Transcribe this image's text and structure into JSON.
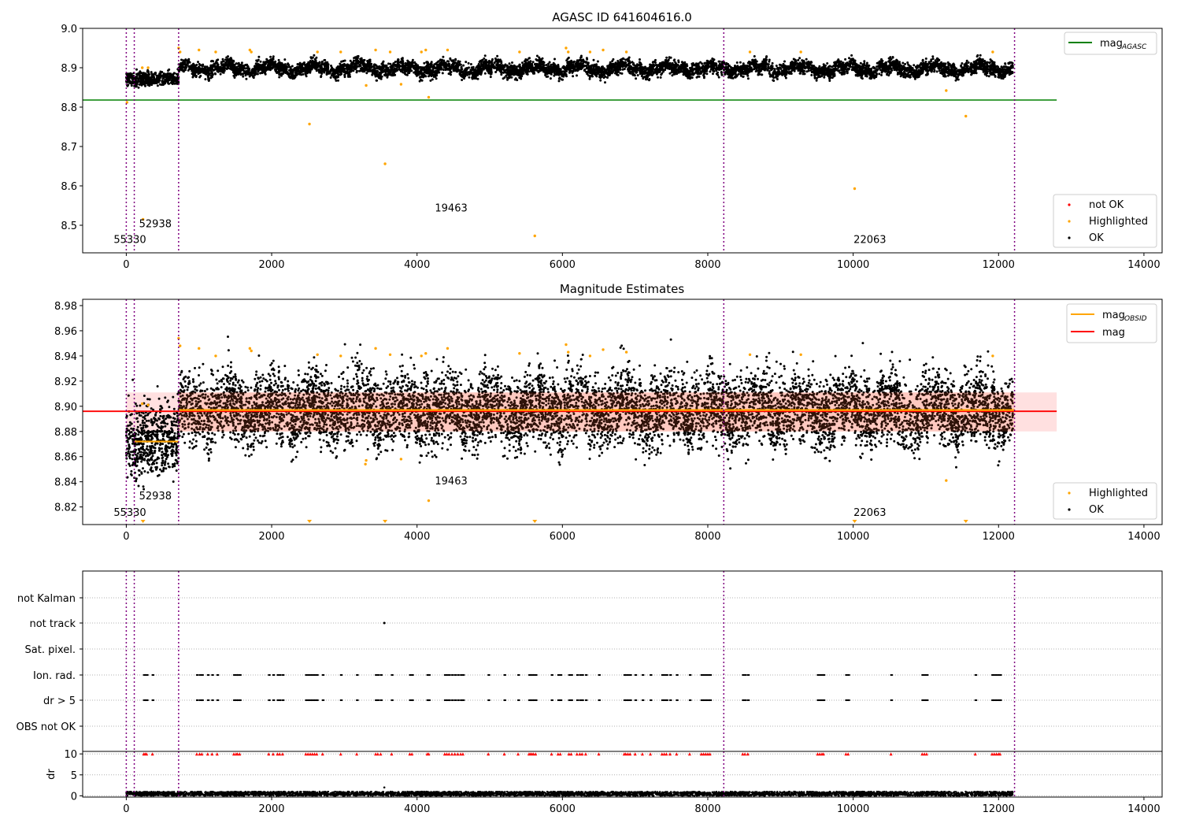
{
  "chart_data": [
    {
      "type": "scatter",
      "title": "AGASC ID 641604616.0",
      "xlim": [
        -600,
        14250
      ],
      "ylim": [
        8.43,
        9.0
      ],
      "x_ticks": [
        0,
        2000,
        4000,
        6000,
        8000,
        10000,
        12000,
        14000
      ],
      "y_ticks": [
        8.5,
        8.6,
        8.7,
        8.8,
        8.9,
        9.0
      ],
      "grid": false,
      "ok_band": [
        8.85,
        8.935
      ],
      "lines": [
        {
          "name": "mag_AGASC",
          "label": "mag",
          "label_sub": "AGASC",
          "y": 8.818,
          "x": [
            -600,
            12800
          ],
          "color": "#008000"
        }
      ],
      "series_names": {
        "not_ok": "not OK",
        "highlighted": "Highlighted",
        "ok": "OK"
      },
      "legend_lines_position": "upper right",
      "legend_points_position": "lower right",
      "highlighted_points": [
        [
          10,
          8.812
        ],
        [
          230,
          8.515
        ],
        [
          2520,
          8.757
        ],
        [
          3560,
          8.656
        ],
        [
          3780,
          8.858
        ],
        [
          4160,
          8.825
        ],
        [
          5620,
          8.473
        ],
        [
          10020,
          8.593
        ],
        [
          11280,
          8.842
        ],
        [
          11550,
          8.777
        ],
        [
          3300,
          8.855
        ],
        [
          720,
          8.95
        ],
        [
          740,
          8.94
        ],
        [
          1000,
          8.945
        ],
        [
          1230,
          8.94
        ],
        [
          1700,
          8.945
        ],
        [
          1720,
          8.94
        ],
        [
          2630,
          8.94
        ],
        [
          2950,
          8.94
        ],
        [
          3430,
          8.945
        ],
        [
          3630,
          8.94
        ],
        [
          4060,
          8.94
        ],
        [
          4120,
          8.945
        ],
        [
          4420,
          8.945
        ],
        [
          5410,
          8.94
        ],
        [
          6050,
          8.95
        ],
        [
          6080,
          8.94
        ],
        [
          6380,
          8.94
        ],
        [
          6560,
          8.945
        ],
        [
          6880,
          8.94
        ],
        [
          8580,
          8.94
        ],
        [
          9280,
          8.94
        ],
        [
          11920,
          8.94
        ],
        [
          220,
          8.9
        ],
        [
          300,
          8.9
        ]
      ],
      "not_ok_points": [],
      "observation_boundaries": [
        0,
        110,
        720,
        8220,
        12220
      ],
      "observation_labels": [
        {
          "text": "55330",
          "x": 50,
          "y": 8.455
        },
        {
          "text": "52938",
          "x": 400,
          "y": 8.495
        },
        {
          "text": "19463",
          "x": 4470,
          "y": 8.535
        },
        {
          "text": "22063",
          "x": 10230,
          "y": 8.455
        }
      ]
    },
    {
      "type": "scatter",
      "title": "Magnitude Estimates",
      "xlim": [
        -600,
        14250
      ],
      "ylim": [
        8.806,
        8.985
      ],
      "x_ticks": [
        0,
        2000,
        4000,
        6000,
        8000,
        10000,
        12000,
        14000
      ],
      "y_ticks": [
        8.82,
        8.84,
        8.86,
        8.88,
        8.9,
        8.92,
        8.94,
        8.96,
        8.98
      ],
      "grid": false,
      "mag_band": [
        8.88,
        8.911
      ],
      "lines": [
        {
          "name": "mag_OBSID",
          "label": "mag",
          "label_sub": "OBSID",
          "color": "#ffa500",
          "segments": [
            [
              110,
              720,
              8.872
            ],
            [
              720,
              12220,
              8.897
            ]
          ]
        },
        {
          "name": "mag",
          "label": "mag",
          "y": 8.896,
          "x": [
            -600,
            12800
          ],
          "color": "#ff0000"
        }
      ],
      "series_names": {
        "highlighted": "Highlighted",
        "ok": "OK"
      },
      "legend_lines_position": "upper right",
      "legend_points_position": "lower right",
      "highlighted_points": [
        [
          3290,
          8.854
        ],
        [
          3300,
          8.857
        ],
        [
          3780,
          8.858
        ],
        [
          4160,
          8.825
        ],
        [
          11280,
          8.841
        ],
        [
          220,
          8.902
        ],
        [
          300,
          8.901
        ],
        [
          720,
          8.954
        ],
        [
          740,
          8.948
        ],
        [
          1000,
          8.946
        ],
        [
          1230,
          8.94
        ],
        [
          1700,
          8.946
        ],
        [
          1720,
          8.944
        ],
        [
          2630,
          8.941
        ],
        [
          2950,
          8.94
        ],
        [
          3430,
          8.946
        ],
        [
          3630,
          8.941
        ],
        [
          4060,
          8.94
        ],
        [
          4120,
          8.942
        ],
        [
          4420,
          8.946
        ],
        [
          5410,
          8.942
        ],
        [
          6050,
          8.949
        ],
        [
          6080,
          8.943
        ],
        [
          6380,
          8.94
        ],
        [
          6560,
          8.945
        ],
        [
          6880,
          8.943
        ],
        [
          8580,
          8.941
        ],
        [
          9280,
          8.941
        ],
        [
          11920,
          8.94
        ]
      ],
      "clipped_points_x": [
        230,
        2520,
        3560,
        5620,
        10020,
        11550
      ],
      "observation_boundaries": [
        0,
        110,
        720,
        8220,
        12220
      ],
      "observation_labels": [
        {
          "text": "55330",
          "x": 50,
          "y": 8.813
        },
        {
          "text": "52938",
          "x": 400,
          "y": 8.826
        },
        {
          "text": "19463",
          "x": 4470,
          "y": 8.838
        },
        {
          "text": "22063",
          "x": 10230,
          "y": 8.813
        }
      ]
    },
    {
      "type": "scatter",
      "xlim": [
        -600,
        14250
      ],
      "categories": [
        "not Kalman",
        "not track",
        "Sat. pixel.",
        "Ion. rad.",
        "dr > 5",
        "OBS not OK"
      ],
      "flag_x": [
        240,
        260,
        280,
        360,
        970,
        1010,
        1040,
        1120,
        1180,
        1250,
        1480,
        1510,
        1530,
        1560,
        1960,
        2020,
        2080,
        2110,
        2150,
        2470,
        2500,
        2530,
        2560,
        2590,
        2620,
        2700,
        2950,
        3170,
        3430,
        3460,
        3500,
        3650,
        3900,
        3930,
        4140,
        4160,
        4380,
        4410,
        4440,
        4480,
        4520,
        4560,
        4600,
        4630,
        4980,
        5200,
        5390,
        5540,
        5560,
        5580,
        5600,
        5630,
        5850,
        5940,
        5970,
        6090,
        6120,
        6200,
        6240,
        6270,
        6320,
        6500,
        6850,
        6870,
        6900,
        6930,
        7000,
        7100,
        7210,
        7370,
        7400,
        7430,
        7480,
        7570,
        7750,
        7910,
        7940,
        7970,
        8000,
        8030,
        8480,
        8510,
        8550,
        9510,
        9540,
        9570,
        9590,
        9900,
        9930,
        10520,
        10950,
        10980,
        11010,
        11680,
        11910,
        11940,
        11970,
        12000,
        12020
      ],
      "not_track_x": [
        3550
      ]
    },
    {
      "type": "scatter",
      "xlim": [
        -600,
        14250
      ],
      "ylim": [
        -0.3,
        10.6
      ],
      "ylabel": "dr",
      "y_ticks": [
        0,
        5,
        10
      ],
      "x_ticks": [
        0,
        2000,
        4000,
        6000,
        8000,
        10000,
        12000,
        14000
      ],
      "ok_dr_range": [
        0,
        1.0
      ],
      "highlighted_dr": 10,
      "extra_points": [
        [
          3550,
          2.0
        ]
      ]
    }
  ]
}
